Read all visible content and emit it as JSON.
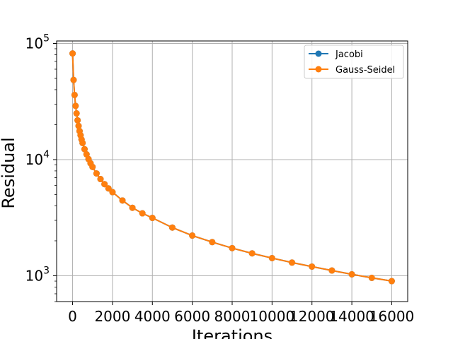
{
  "chart_data": {
    "type": "line",
    "title": "",
    "xlabel": "Iterations",
    "ylabel": "Residual",
    "xscale": "linear",
    "yscale": "log",
    "xlim": [
      -800,
      16800
    ],
    "ylim": [
      600,
      105000
    ],
    "grid": true,
    "legend_position": "top-right",
    "x_ticks": [
      {
        "value": 0,
        "label": "0"
      },
      {
        "value": 2000,
        "label": "2000"
      },
      {
        "value": 4000,
        "label": "4000"
      },
      {
        "value": 6000,
        "label": "6000"
      },
      {
        "value": 8000,
        "label": "8000"
      },
      {
        "value": 10000,
        "label": "10000"
      },
      {
        "value": 12000,
        "label": "12000"
      },
      {
        "value": 14000,
        "label": "14000"
      },
      {
        "value": 16000,
        "label": "16000"
      }
    ],
    "y_ticks": [
      {
        "value": 1000,
        "base": "10",
        "exp": "3"
      },
      {
        "value": 10000,
        "base": "10",
        "exp": "4"
      },
      {
        "value": 100000,
        "base": "10",
        "exp": "5"
      }
    ],
    "series": [
      {
        "name": "Jacobi",
        "color": "#1f77b4",
        "marker": "circle",
        "x": [
          0,
          50,
          100,
          150,
          200,
          250,
          300,
          350,
          400,
          450,
          500,
          600,
          700,
          800,
          900,
          1000,
          1200,
          1400,
          1600,
          1800,
          2000,
          2500,
          3000,
          3500,
          4000,
          5000,
          6000,
          7000,
          8000,
          9000,
          10000,
          11000,
          12000,
          13000,
          14000,
          15000,
          16000
        ],
        "y": [
          82000,
          48500,
          36000,
          29000,
          25000,
          21800,
          19500,
          17600,
          16200,
          14900,
          13900,
          12300,
          11100,
          10100,
          9300,
          8650,
          7600,
          6800,
          6150,
          5650,
          5250,
          4450,
          3850,
          3450,
          3150,
          2600,
          2220,
          1950,
          1730,
          1560,
          1420,
          1300,
          1200,
          1110,
          1030,
          960,
          900
        ]
      },
      {
        "name": "Gauss-Seidel",
        "color": "#ff7f0e",
        "marker": "circle",
        "x": [
          0,
          50,
          100,
          150,
          200,
          250,
          300,
          350,
          400,
          450,
          500,
          600,
          700,
          800,
          900,
          1000,
          1200,
          1400,
          1600,
          1800,
          2000,
          2500,
          3000,
          3500,
          4000,
          5000,
          6000,
          7000,
          8000,
          9000,
          10000,
          11000,
          12000,
          13000,
          14000,
          15000,
          16000
        ],
        "y": [
          82000,
          48500,
          36000,
          29000,
          25000,
          21800,
          19500,
          17600,
          16200,
          14900,
          13900,
          12300,
          11100,
          10100,
          9300,
          8650,
          7600,
          6800,
          6150,
          5650,
          5250,
          4450,
          3850,
          3450,
          3150,
          2600,
          2220,
          1950,
          1730,
          1560,
          1420,
          1300,
          1200,
          1110,
          1030,
          960,
          900
        ]
      }
    ]
  }
}
